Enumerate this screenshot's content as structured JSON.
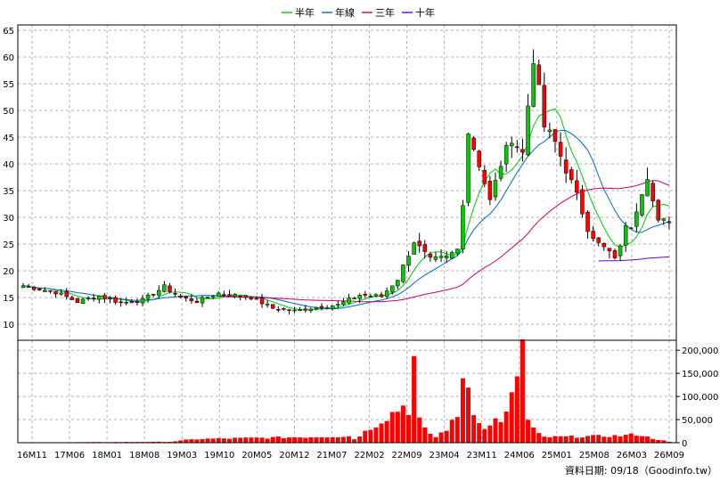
{
  "chart_data": {
    "type": "candlestick+volume",
    "legend": [
      {
        "name": "半年",
        "color": "#00cc00"
      },
      {
        "name": "年線",
        "color": "#0066cc"
      },
      {
        "name": "三年",
        "color": "#cc0066"
      },
      {
        "name": "十年",
        "color": "#6600cc"
      }
    ],
    "price_axis": {
      "ticks": [
        10,
        15,
        20,
        25,
        30,
        35,
        40,
        45,
        50,
        55,
        60,
        65
      ],
      "range": [
        7,
        66
      ]
    },
    "volume_axis": {
      "ticks": [
        0,
        50000,
        100000,
        150000,
        200000
      ],
      "tick_labels": [
        "0",
        "50,000",
        "100,000",
        "150,000",
        "200,000"
      ],
      "range": [
        0,
        210000
      ]
    },
    "x_ticks": [
      "16M11",
      "17M06",
      "18M01",
      "18M08",
      "19M03",
      "19M10",
      "20M05",
      "20M12",
      "21M07",
      "22M02",
      "22M09",
      "23M04",
      "23M11",
      "24M06",
      "25M01",
      "25M08",
      "26M03",
      "26M09"
    ],
    "footer": "資料日期: 09/18（Goodinfo.tw）",
    "grid": true,
    "up_color": "#00cc00",
    "down_color": "#ff0000",
    "price_key": [
      {
        "i": 0,
        "v": 17.2
      },
      {
        "i": 6,
        "v": 16.0
      },
      {
        "i": 10,
        "v": 14.2
      },
      {
        "i": 14,
        "v": 15.3
      },
      {
        "i": 18,
        "v": 14.0
      },
      {
        "i": 22,
        "v": 14.5
      },
      {
        "i": 26,
        "v": 17.0
      },
      {
        "i": 29,
        "v": 15.0
      },
      {
        "i": 32,
        "v": 14.3
      },
      {
        "i": 36,
        "v": 15.8
      },
      {
        "i": 42,
        "v": 15.0
      },
      {
        "i": 46,
        "v": 13.0
      },
      {
        "i": 50,
        "v": 12.5
      },
      {
        "i": 54,
        "v": 13.2
      },
      {
        "i": 58,
        "v": 13.6
      },
      {
        "i": 62,
        "v": 15.5
      },
      {
        "i": 66,
        "v": 15.2
      },
      {
        "i": 69,
        "v": 18.5
      },
      {
        "i": 72,
        "v": 25.5
      },
      {
        "i": 75,
        "v": 22.0
      },
      {
        "i": 78,
        "v": 22.5
      },
      {
        "i": 80,
        "v": 24.0
      },
      {
        "i": 81,
        "v": 33.0
      },
      {
        "i": 82,
        "v": 46.0
      },
      {
        "i": 84,
        "v": 40.0
      },
      {
        "i": 86,
        "v": 33.0
      },
      {
        "i": 88,
        "v": 40.0
      },
      {
        "i": 90,
        "v": 45.0
      },
      {
        "i": 92,
        "v": 42.0
      },
      {
        "i": 94,
        "v": 60.0
      },
      {
        "i": 96,
        "v": 47.0
      },
      {
        "i": 98,
        "v": 44.0
      },
      {
        "i": 100,
        "v": 39.0
      },
      {
        "i": 102,
        "v": 34.0
      },
      {
        "i": 104,
        "v": 28.0
      },
      {
        "i": 106,
        "v": 25.0
      },
      {
        "i": 108,
        "v": 23.5
      },
      {
        "i": 109,
        "v": 22.0
      },
      {
        "i": 111,
        "v": 28.0
      },
      {
        "i": 112,
        "v": 28.5
      },
      {
        "i": 114,
        "v": 35.0
      },
      {
        "i": 115,
        "v": 38.0
      },
      {
        "i": 116,
        "v": 33.0
      },
      {
        "i": 117,
        "v": 29.0
      },
      {
        "i": 119,
        "v": 29.5
      }
    ],
    "volume_key": [
      {
        "i": 0,
        "v": 500
      },
      {
        "i": 27,
        "v": 2000
      },
      {
        "i": 32,
        "v": 8000
      },
      {
        "i": 60,
        "v": 14000
      },
      {
        "i": 61,
        "v": 8000
      },
      {
        "i": 70,
        "v": 80000
      },
      {
        "i": 71,
        "v": 72000
      },
      {
        "i": 72,
        "v": 180000
      },
      {
        "i": 73,
        "v": 48000
      },
      {
        "i": 74,
        "v": 28000
      },
      {
        "i": 76,
        "v": 12000
      },
      {
        "i": 78,
        "v": 30000
      },
      {
        "i": 80,
        "v": 55000
      },
      {
        "i": 81,
        "v": 155000
      },
      {
        "i": 82,
        "v": 120000
      },
      {
        "i": 83,
        "v": 72000
      },
      {
        "i": 84,
        "v": 50000
      },
      {
        "i": 85,
        "v": 28000
      },
      {
        "i": 86,
        "v": 35000
      },
      {
        "i": 87,
        "v": 60000
      },
      {
        "i": 88,
        "v": 40000
      },
      {
        "i": 89,
        "v": 62000
      },
      {
        "i": 90,
        "v": 95000
      },
      {
        "i": 92,
        "v": 210000
      },
      {
        "i": 93,
        "v": 48000
      },
      {
        "i": 94,
        "v": 30000
      },
      {
        "i": 95,
        "v": 18000
      },
      {
        "i": 96,
        "v": 12000
      },
      {
        "i": 110,
        "v": 15000
      },
      {
        "i": 113,
        "v": 18000
      },
      {
        "i": 114,
        "v": 16000
      },
      {
        "i": 115,
        "v": 12000
      },
      {
        "i": 119,
        "v": 2000
      }
    ]
  }
}
